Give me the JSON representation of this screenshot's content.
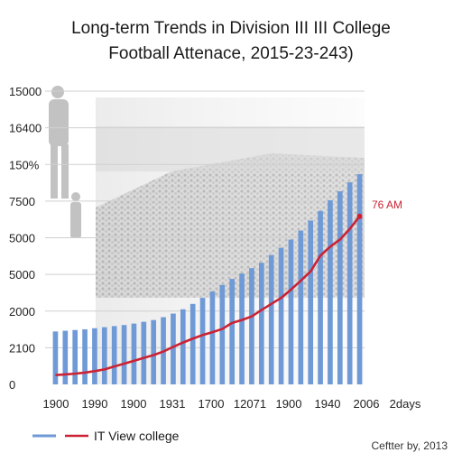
{
  "chart_data": {
    "type": "bar",
    "title": "Long-term Trends in Division III III College",
    "subtitle": "Football Attenace, 2015-23-243)",
    "xlabel": "",
    "ylabel": "",
    "y_tick_labels": [
      "0",
      "2100",
      "2000",
      "5000",
      "5000",
      "7500",
      "150%",
      "16400",
      "15000"
    ],
    "x_tick_labels": [
      "1900",
      "1990",
      "1900",
      "1931",
      "1700",
      "12071",
      "1900",
      "1940",
      "2006",
      "2days"
    ],
    "bar_values": [
      14.8,
      15.0,
      15.2,
      15.4,
      15.7,
      16.0,
      16.3,
      16.6,
      17.0,
      17.5,
      18.0,
      18.8,
      19.8,
      21.0,
      22.5,
      24.2,
      26.0,
      27.8,
      29.5,
      31.0,
      32.5,
      34.0,
      36.2,
      38.2,
      40.5,
      43.0,
      45.8,
      48.5,
      51.5,
      54.0,
      56.5,
      58.8
    ],
    "line_values": [
      2.6,
      2.8,
      3.0,
      3.3,
      3.7,
      4.2,
      5.0,
      5.8,
      6.6,
      7.4,
      8.2,
      9.2,
      10.5,
      11.7,
      12.8,
      13.8,
      14.6,
      15.5,
      17.2,
      18.0,
      19.0,
      20.8,
      22.5,
      24.2,
      26.5,
      29.0,
      31.6,
      36.0,
      38.5,
      40.5,
      43.5,
      47.0
    ],
    "ylim": [
      0,
      82
    ],
    "grid": true,
    "annotation": "76 AM",
    "legend": {
      "label": "IT View college",
      "position": "bottom-left"
    },
    "colors": {
      "bars": "#6f9ad6",
      "line": "#cc2233",
      "grid": "#cfcfcf"
    }
  },
  "credit": "Ceftter by, 2013"
}
